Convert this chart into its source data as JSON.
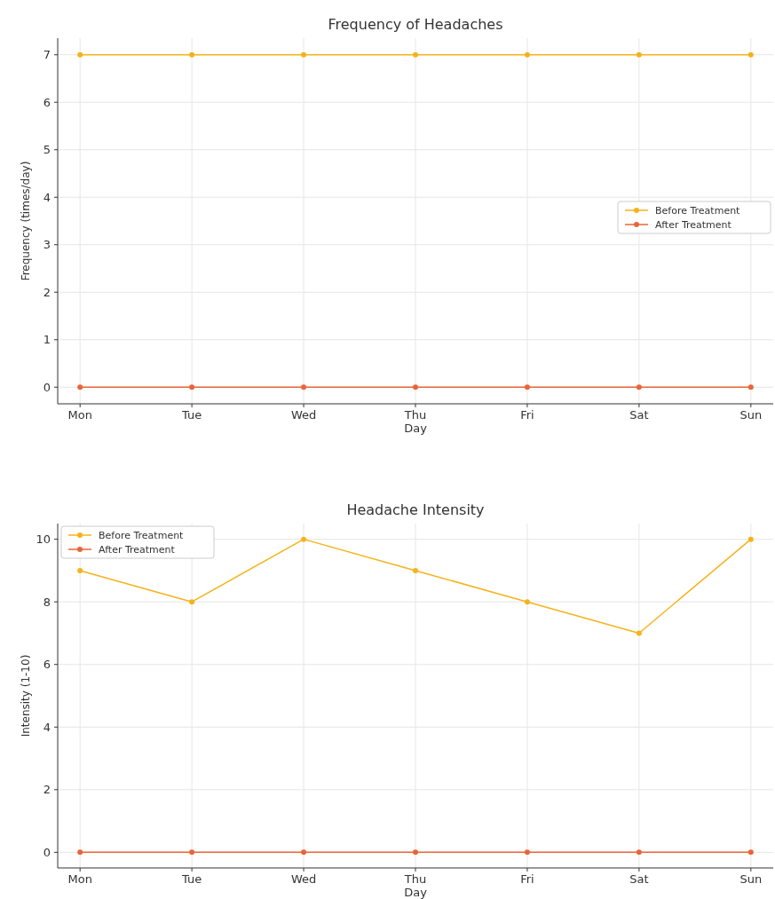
{
  "chart_data": [
    {
      "type": "line",
      "title": "Frequency of Headaches",
      "xlabel": "Day",
      "ylabel": "Frequency (times/day)",
      "categories": [
        "Mon",
        "Tue",
        "Wed",
        "Thu",
        "Fri",
        "Sat",
        "Sun"
      ],
      "series": [
        {
          "name": "Before Treatment",
          "color": "#f5b31b",
          "values": [
            7,
            7,
            7,
            7,
            7,
            7,
            7
          ]
        },
        {
          "name": "After Treatment",
          "color": "#e8653a",
          "values": [
            0,
            0,
            0,
            0,
            0,
            0,
            0
          ]
        }
      ],
      "ylim": [
        -0.35,
        7.35
      ],
      "yticks": [
        0,
        1,
        2,
        3,
        4,
        5,
        6,
        7
      ],
      "grid": true,
      "legend": "right",
      "marker": "circle",
      "line_style": "solid"
    },
    {
      "type": "line",
      "title": "Headache Intensity",
      "xlabel": "Day",
      "ylabel": "Intensity (1-10)",
      "categories": [
        "Mon",
        "Tue",
        "Wed",
        "Thu",
        "Fri",
        "Sat",
        "Sun"
      ],
      "series": [
        {
          "name": "Before Treatment",
          "color": "#f5b31b",
          "values": [
            9,
            8,
            10,
            9,
            8,
            7,
            10
          ]
        },
        {
          "name": "After Treatment",
          "color": "#e8653a",
          "values": [
            0,
            0,
            0,
            0,
            0,
            0,
            0
          ]
        }
      ],
      "ylim": [
        -0.5,
        10.5
      ],
      "yticks": [
        0,
        2,
        4,
        6,
        8,
        10
      ],
      "grid": true,
      "legend": "top left",
      "marker": "circle",
      "line_style": "solid"
    }
  ]
}
